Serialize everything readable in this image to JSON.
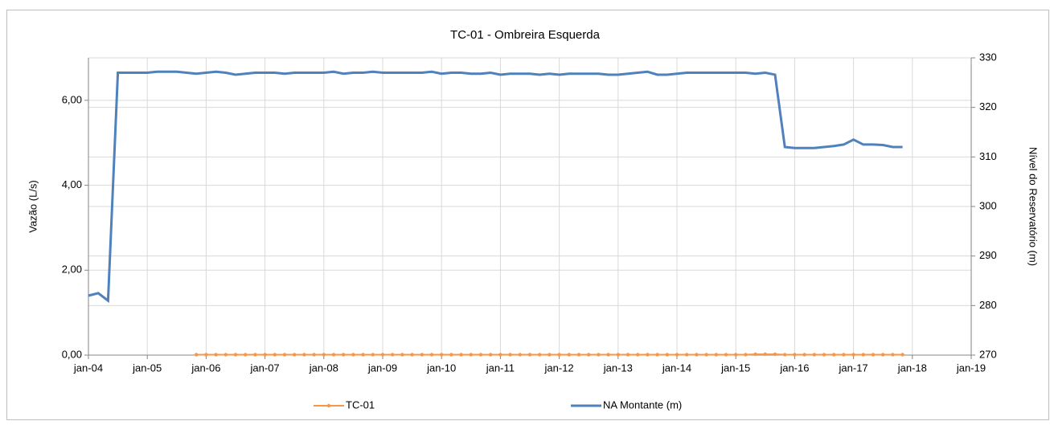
{
  "chart_data": {
    "type": "line",
    "title": "TC-01 - Ombreira Esquerda",
    "ylabel": "Vazão (L/s)",
    "y2label": "Nível do Reservatório (m)",
    "x": [
      "2004-01",
      "2004-03",
      "2004-05",
      "2004-07",
      "2004-09",
      "2004-11",
      "2005-01",
      "2005-03",
      "2005-05",
      "2005-07",
      "2005-09",
      "2005-11",
      "2006-01",
      "2006-03",
      "2006-05",
      "2006-07",
      "2006-09",
      "2006-11",
      "2007-01",
      "2007-03",
      "2007-05",
      "2007-07",
      "2007-09",
      "2007-11",
      "2008-01",
      "2008-03",
      "2008-05",
      "2008-07",
      "2008-09",
      "2008-11",
      "2009-01",
      "2009-03",
      "2009-05",
      "2009-07",
      "2009-09",
      "2009-11",
      "2010-01",
      "2010-03",
      "2010-05",
      "2010-07",
      "2010-09",
      "2010-11",
      "2011-01",
      "2011-03",
      "2011-05",
      "2011-07",
      "2011-09",
      "2011-11",
      "2012-01",
      "2012-03",
      "2012-05",
      "2012-07",
      "2012-09",
      "2012-11",
      "2013-01",
      "2013-03",
      "2013-05",
      "2013-07",
      "2013-09",
      "2013-11",
      "2014-01",
      "2014-03",
      "2014-05",
      "2014-07",
      "2014-09",
      "2014-11",
      "2015-01",
      "2015-03",
      "2015-05",
      "2015-07",
      "2015-09",
      "2015-11",
      "2016-01",
      "2016-03",
      "2016-05",
      "2016-07",
      "2016-09",
      "2016-11",
      "2017-01",
      "2017-03",
      "2017-05",
      "2017-07",
      "2017-09",
      "2017-11"
    ],
    "series": [
      {
        "name": "TC-01",
        "color": "#f79646",
        "axis": "y",
        "marker": true,
        "values": [
          null,
          null,
          null,
          null,
          null,
          null,
          null,
          null,
          null,
          null,
          null,
          0.01,
          0.01,
          0.01,
          0.01,
          0.01,
          0.01,
          0.01,
          0.01,
          0.01,
          0.01,
          0.01,
          0.01,
          0.01,
          0.01,
          0.01,
          0.01,
          0.01,
          0.01,
          0.01,
          0.01,
          0.01,
          0.01,
          0.01,
          0.01,
          0.01,
          0.01,
          0.01,
          0.01,
          0.01,
          0.01,
          0.01,
          0.01,
          0.01,
          0.01,
          0.01,
          0.01,
          0.01,
          0.01,
          0.01,
          0.01,
          0.01,
          0.01,
          0.01,
          0.01,
          0.01,
          0.01,
          0.01,
          0.01,
          0.01,
          0.01,
          0.01,
          0.01,
          0.01,
          0.01,
          0.01,
          0.01,
          0.01,
          0.02,
          0.02,
          0.02,
          0.01,
          0.01,
          0.01,
          0.01,
          0.01,
          0.01,
          0.01,
          0.01,
          0.01,
          0.01,
          0.01,
          0.01,
          0.01
        ]
      },
      {
        "name": "NA Montante (m)",
        "color": "#4f81bd",
        "axis": "y2",
        "marker": false,
        "values": [
          282,
          282.5,
          281,
          327,
          327,
          327,
          327,
          327.2,
          327.2,
          327.2,
          327,
          326.8,
          327,
          327.2,
          327,
          326.6,
          326.8,
          327,
          327,
          327,
          326.8,
          327,
          327,
          327,
          327,
          327.2,
          326.8,
          327,
          327,
          327.2,
          327,
          327,
          327,
          327,
          327,
          327.2,
          326.8,
          327,
          327,
          326.8,
          326.8,
          327,
          326.6,
          326.8,
          326.8,
          326.8,
          326.6,
          326.8,
          326.6,
          326.8,
          326.8,
          326.8,
          326.8,
          326.6,
          326.6,
          326.8,
          327,
          327.2,
          326.6,
          326.6,
          326.8,
          327,
          327,
          327,
          327,
          327,
          327,
          327,
          326.8,
          327,
          326.6,
          312,
          311.8,
          311.8,
          311.8,
          312,
          312.2,
          312.5,
          313.5,
          312.5,
          312.5,
          312.4,
          312,
          312
        ]
      }
    ],
    "xlim": [
      "2004-01",
      "2019-01"
    ],
    "xticks": [
      {
        "value": "2004-01",
        "label": "jan-04"
      },
      {
        "value": "2005-01",
        "label": "jan-05"
      },
      {
        "value": "2006-01",
        "label": "jan-06"
      },
      {
        "value": "2007-01",
        "label": "jan-07"
      },
      {
        "value": "2008-01",
        "label": "jan-08"
      },
      {
        "value": "2009-01",
        "label": "jan-09"
      },
      {
        "value": "2010-01",
        "label": "jan-10"
      },
      {
        "value": "2011-01",
        "label": "jan-11"
      },
      {
        "value": "2012-01",
        "label": "jan-12"
      },
      {
        "value": "2013-01",
        "label": "jan-13"
      },
      {
        "value": "2014-01",
        "label": "jan-14"
      },
      {
        "value": "2015-01",
        "label": "jan-15"
      },
      {
        "value": "2016-01",
        "label": "jan-16"
      },
      {
        "value": "2017-01",
        "label": "jan-17"
      },
      {
        "value": "2018-01",
        "label": "jan-18"
      },
      {
        "value": "2019-01",
        "label": "jan-19"
      }
    ],
    "ylim": [
      0,
      7
    ],
    "yticks": [
      {
        "value": 0,
        "label": "0,00"
      },
      {
        "value": 2,
        "label": "2,00"
      },
      {
        "value": 4,
        "label": "4,00"
      },
      {
        "value": 6,
        "label": "6,00"
      }
    ],
    "y2lim": [
      270,
      330
    ],
    "y2ticks": [
      270,
      280,
      290,
      300,
      310,
      320,
      330
    ],
    "grid": true,
    "legend": "bottom"
  }
}
